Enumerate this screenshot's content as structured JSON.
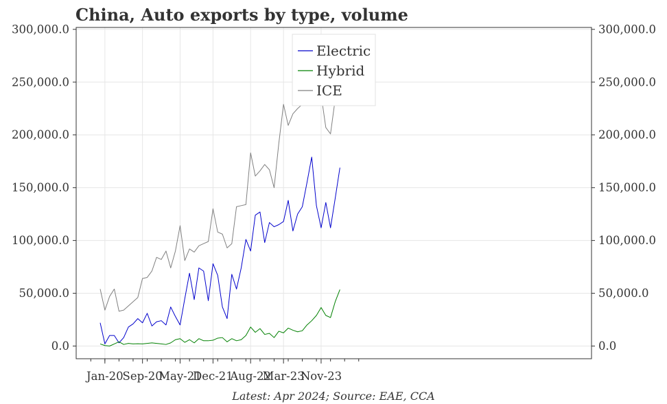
{
  "chart_data": {
    "type": "line",
    "title": "China, Auto exports by type, volume",
    "footnote": "Latest: Apr 2024; Source: EAE, CCA",
    "xlabel": "",
    "ylabel": "",
    "ylim": [
      -10000,
      300000
    ],
    "y_ticks": [
      0,
      50000,
      100000,
      150000,
      200000,
      250000,
      300000
    ],
    "y_tick_labels": [
      "0.0",
      "50,000.0",
      "100,000.0",
      "150,000.0",
      "200,000.0",
      "250,000.0",
      "300,000.0"
    ],
    "x_tick_labels": [
      "Jan-20",
      "Sep-20",
      "May-21",
      "Dec-21",
      "Aug-22",
      "Mar-23",
      "Nov-23"
    ],
    "x_tick_dates": [
      "2020-01",
      "2020-09",
      "2021-05",
      "2021-12",
      "2022-08",
      "2023-03",
      "2023-11"
    ],
    "grid": true,
    "dual_y_axis": true,
    "legend_position": "top-center",
    "x": [
      "2019-12",
      "2020-01",
      "2020-02",
      "2020-03",
      "2020-04",
      "2020-05",
      "2020-06",
      "2020-07",
      "2020-08",
      "2020-09",
      "2020-10",
      "2020-11",
      "2020-12",
      "2021-01",
      "2021-02",
      "2021-03",
      "2021-04",
      "2021-05",
      "2021-06",
      "2021-07",
      "2021-08",
      "2021-09",
      "2021-10",
      "2021-11",
      "2021-12",
      "2022-01",
      "2022-02",
      "2022-03",
      "2022-04",
      "2022-05",
      "2022-06",
      "2022-07",
      "2022-08",
      "2022-09",
      "2022-10",
      "2022-11",
      "2022-12",
      "2023-01",
      "2023-02",
      "2023-03",
      "2023-04",
      "2023-05",
      "2023-06",
      "2023-07",
      "2023-08",
      "2023-09",
      "2023-10",
      "2023-11",
      "2023-12",
      "2024-01",
      "2024-02",
      "2024-03",
      "2024-04"
    ],
    "series": [
      {
        "name": "Electric",
        "color": "#0000cc",
        "values": [
          22000,
          2000,
          10000,
          10000,
          3000,
          8000,
          18000,
          21000,
          26000,
          22000,
          31000,
          19000,
          23000,
          24000,
          20000,
          37000,
          28000,
          20000,
          45000,
          69000,
          44000,
          74000,
          71000,
          43000,
          78000,
          67000,
          37000,
          26000,
          68000,
          54000,
          74000,
          101000,
          90000,
          124000,
          127000,
          98000,
          117000,
          113000,
          115000,
          118000,
          138000,
          109000,
          125000,
          132000,
          155000,
          179000,
          133000,
          112000,
          136000,
          112000,
          140000,
          169000,
          null
        ]
      },
      {
        "name": "Hybrid",
        "color": "#008000",
        "values": [
          2000,
          500,
          0,
          2000,
          4000,
          1500,
          2500,
          2000,
          2200,
          2000,
          2500,
          3000,
          2500,
          2000,
          1500,
          3000,
          6000,
          7000,
          3500,
          6000,
          3000,
          7000,
          5000,
          5000,
          5500,
          7500,
          8000,
          4000,
          7000,
          5000,
          6000,
          10000,
          18000,
          13000,
          16500,
          11000,
          12000,
          8000,
          14000,
          12500,
          17000,
          15000,
          13500,
          14500,
          20000,
          24000,
          29000,
          36500,
          29000,
          27000,
          42000,
          53500,
          null
        ]
      },
      {
        "name": "ICE",
        "color": "#808080",
        "values": [
          54000,
          34000,
          47000,
          54000,
          33000,
          34000,
          38000,
          42000,
          46000,
          64000,
          65000,
          71000,
          84000,
          82000,
          90000,
          74000,
          90000,
          114000,
          81000,
          92000,
          89000,
          95000,
          97000,
          99000,
          130000,
          108000,
          106000,
          93000,
          97000,
          132000,
          133000,
          134000,
          183000,
          161000,
          166000,
          172000,
          167000,
          150000,
          192000,
          229000,
          209000,
          220000,
          225000,
          229000,
          256000,
          265000,
          287000,
          238000,
          207000,
          201000,
          234000,
          257000,
          null
        ]
      }
    ]
  }
}
